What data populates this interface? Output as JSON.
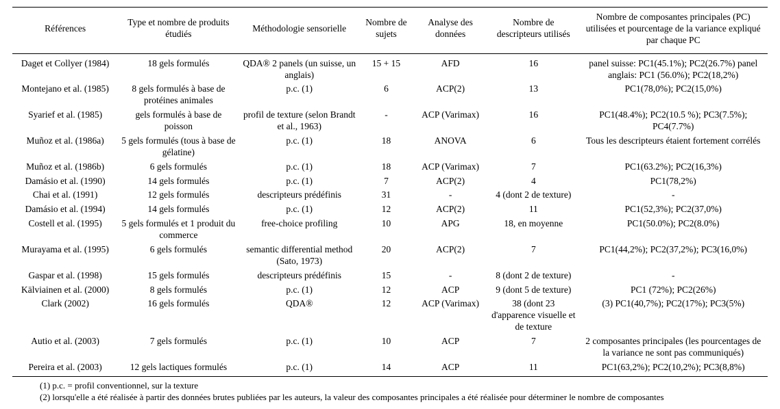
{
  "headers": {
    "ref": "Références",
    "type": "Type et nombre de produits étudiés",
    "meth": "Méthodologie sensorielle",
    "subj": "Nombre de sujets",
    "ana": "Analyse des données",
    "desc": "Nombre de descripteurs utilisés",
    "pc": "Nombre de composantes principales (PC) utilisées et pourcentage de la variance expliqué par chaque PC"
  },
  "rows": [
    {
      "ref": "Daget et Collyer (1984)",
      "type": "18 gels formulés",
      "meth": "QDA®\n2 panels (un suisse, un anglais)",
      "subj": "15 + 15",
      "ana": "AFD",
      "desc": "16",
      "pc": "panel suisse: PC1(45.1%); PC2(26.7%)\npanel anglais: PC1 (56.0%); PC2(18,2%)"
    },
    {
      "ref": "Montejano et al. (1985)",
      "type": "8 gels formulés à base de protéines animales",
      "meth": "p.c. (1)",
      "subj": "6",
      "ana": "ACP(2)",
      "desc": "13",
      "pc": "PC1(78,0%); PC2(15,0%)"
    },
    {
      "ref": "Syarief et al. (1985)",
      "type": "gels formulés à base de poisson",
      "meth": "profil de texture\n(selon Brandt et al., 1963)",
      "subj": "-",
      "ana": "ACP (Varimax)",
      "desc": "16",
      "pc": "PC1(48.4%); PC2(10.5 %); PC3(7.5%); PC4(7.7%)"
    },
    {
      "ref": "Muñoz et al. (1986a)",
      "type": "5 gels formulés (tous à base de gélatine)",
      "meth": "p.c. (1)",
      "subj": "18",
      "ana": "ANOVA",
      "desc": "6",
      "pc": "Tous les descripteurs étaient fortement corrélés"
    },
    {
      "ref": "Muñoz et al. (1986b)",
      "type": "6 gels formulés",
      "meth": "p.c. (1)",
      "subj": "18",
      "ana": "ACP (Varimax)",
      "desc": "7",
      "pc": "PC1(63.2%); PC2(16,3%)"
    },
    {
      "ref": "Damásio et al. (1990)",
      "type": "14 gels formulés",
      "meth": "p.c. (1)",
      "subj": "7",
      "ana": "ACP(2)",
      "desc": "4",
      "pc": "PC1(78,2%)"
    },
    {
      "ref": "Chai et al. (1991)",
      "type": "12 gels formulés",
      "meth": "descripteurs prédéfinis",
      "subj": "31",
      "ana": "-",
      "desc": "4 (dont 2 de texture)",
      "pc": "-"
    },
    {
      "ref": "Damásio et al. (1994)",
      "type": "14 gels formulés",
      "meth": "p.c. (1)",
      "subj": "12",
      "ana": "ACP(2)",
      "desc": "11",
      "pc": "PC1(52,3%); PC2(37,0%)"
    },
    {
      "ref": "Costell et al. (1995)",
      "type": "5 gels formulés et 1 produit du commerce",
      "meth": "free-choice profiling",
      "subj": "10",
      "ana": "APG",
      "desc": "18, en moyenne",
      "pc": "PC1(50.0%); PC2(8.0%)"
    },
    {
      "ref": "Murayama et al. (1995)",
      "type": "6 gels formulés",
      "meth": "semantic differential method (Sato, 1973)",
      "subj": "20",
      "ana": "ACP(2)",
      "desc": "7",
      "pc": "PC1(44,2%); PC2(37,2%); PC3(16,0%)"
    },
    {
      "ref": "Gaspar et al. (1998)",
      "type": "15 gels formulés",
      "meth": "descripteurs prédéfinis",
      "subj": "15",
      "ana": "-",
      "desc": "8 (dont 2 de texture)",
      "pc": "-"
    },
    {
      "ref": "Kälviainen et al. (2000)",
      "type": "8 gels formulés",
      "meth": "p.c. (1)",
      "subj": "12",
      "ana": "ACP",
      "desc": "9 (dont 5 de texture)",
      "pc": "PC1 (72%); PC2(26%)"
    },
    {
      "ref": "Clark (2002)",
      "type": "16 gels formulés",
      "meth": "QDA®",
      "subj": "12",
      "ana": "ACP (Varimax)",
      "desc": "38 (dont 23 d'apparence visuelle et de texture",
      "pc": "(3) PC1(40,7%); PC2(17%); PC3(5%)"
    },
    {
      "ref": "Autio et al. (2003)",
      "type": "7 gels formulés",
      "meth": "p.c. (1)",
      "subj": "10",
      "ana": "ACP",
      "desc": "7",
      "pc": "2 composantes principales (les pourcentages de la variance ne sont pas communiqués)"
    },
    {
      "ref": "Pereira et al. (2003)",
      "type": "12 gels lactiques formulés",
      "meth": "p.c. (1)",
      "subj": "14",
      "ana": "ACP",
      "desc": "11",
      "pc": "PC1(63,2%); PC2(10,2%); PC3(8,8%)"
    }
  ],
  "footnotes": {
    "n1": "(1) p.c. = profil conventionnel, sur la texture",
    "n2": "(2) lorsqu'elle a été réalisée à partir des données brutes publiées par les auteurs, la valeur des composantes principales a été réalisée pour déterminer le nombre de composantes"
  }
}
